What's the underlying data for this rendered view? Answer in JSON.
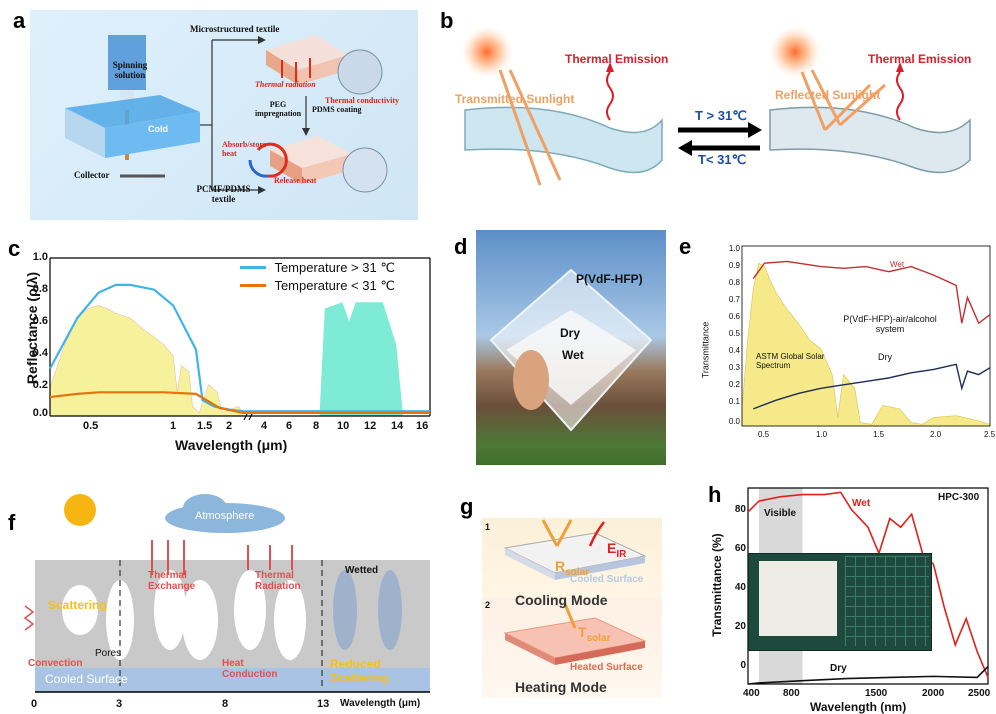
{
  "panels": {
    "a": {
      "letter": "a",
      "spinning_solution": "Spinning solution",
      "cold": "Cold",
      "collector": "Collector",
      "microstructured_textile": "Microstructured textile",
      "thermal_radiation": "Thermal radiation",
      "thermal_conductivity": "Thermal conductivity",
      "peg_impregnation": "PEG impregnation",
      "pdms_coating": "PDMS coating",
      "absorb_store_heat": "Absorb/store heat",
      "release_heat": "Release heat",
      "pcmf_pdms_textile": "PCMF/PDMS textile"
    },
    "b": {
      "letter": "b",
      "thermal_emission_left": "Thermal Emission",
      "thermal_emission_right": "Thermal Emission",
      "transmitted_sunlight": "Transmitted Sunlight",
      "reflected_sunlight": "Reflected Sunlight",
      "t_greater": "T > 31℃",
      "t_less": "T< 31℃"
    },
    "c": {
      "letter": "c",
      "ylabel": "Reflectance (ρ/λ)",
      "xlabel": "Wavelength (μm)",
      "y_ticks": [
        "0.0",
        "0.2",
        "0.4",
        "0.6",
        "0.8",
        "1.0"
      ],
      "x_ticks_left": [
        "0.5",
        "1",
        "1.5",
        "2"
      ],
      "x_ticks_right": [
        "4",
        "6",
        "8",
        "10",
        "12",
        "14",
        "16"
      ],
      "legend": [
        "Temperature > 31 ℃",
        "Temperature < 31 ℃"
      ],
      "colors": {
        "series_hot": "#3fb4e6",
        "series_cold": "#e8720c",
        "solar_fill": "#f4f08a",
        "ir_fill": "#66e8cf"
      }
    },
    "d": {
      "letter": "d",
      "label_material": "P(VdF-HFP)",
      "label_dry": "Dry",
      "label_wet": "Wet"
    },
    "e": {
      "letter": "e",
      "ylabel": "Transmittance",
      "y_ticks": [
        "0.0",
        "0.1",
        "0.2",
        "0.3",
        "0.4",
        "0.5",
        "0.6",
        "0.7",
        "0.8",
        "0.9",
        "1.0"
      ],
      "x_ticks": [
        "0.5",
        "1.0",
        "1.5",
        "2.0",
        "2.5"
      ],
      "label_wet": "Wet",
      "label_dry": "Dry",
      "label_system": "P(VdF-HFP)-air/alcohol system",
      "label_solar": "ASTM Global Solar Spectrum",
      "colors": {
        "wet": "#c0302e",
        "dry": "#1e2c5a",
        "solar": "#f5e98a"
      }
    },
    "f": {
      "letter": "f",
      "atmosphere": "Atmosphere",
      "scattering": "Scattering",
      "thermal_exchange": "Thermal Exchange",
      "thermal_radiation": "Thermal Radiation",
      "wetted": "Wetted",
      "pores": "Pores",
      "convection": "Convection",
      "heat_conduction": "Heat Conduction",
      "reduced_scattering": "Reduced Scattering",
      "cooled_surface": "Cooled Surface",
      "axis_ticks": [
        "0",
        "3",
        "8",
        "13"
      ],
      "axis_label": "Wavelength (μm)"
    },
    "g": {
      "letter": "g",
      "num1": "1",
      "num2": "2",
      "r_solar_main": "R",
      "r_solar_sub": "solar",
      "e_ir_main": "E",
      "e_ir_sub": "IR",
      "t_solar_main": "T",
      "t_solar_sub": "solar",
      "cooled_surface": "Cooled Surface",
      "heated_surface": "Heated Surface",
      "cooling_mode": "Cooling Mode",
      "heating_mode": "Heating Mode"
    },
    "h": {
      "letter": "h",
      "title": "HPC-300",
      "visible": "Visible",
      "wet": "Wet",
      "dry": "Dry",
      "ylabel": "Transmittance (%)",
      "xlabel": "Wavelength (nm)",
      "y_ticks": [
        "0",
        "20",
        "40",
        "60",
        "80"
      ],
      "x_ticks": [
        "400",
        "800",
        "1500",
        "2000",
        "2500"
      ],
      "colors": {
        "wet": "#e0201c",
        "dry": "#111111",
        "visible_band": "#cfcfcf"
      }
    }
  },
  "chart_data": [
    {
      "type": "line",
      "panel": "c",
      "xlabel": "Wavelength (μm)",
      "ylabel": "Reflectance (ρ/λ)",
      "ylim": [
        0,
        1.0
      ],
      "legend_position": "top-right",
      "series": [
        {
          "name": "Temperature > 31 ℃",
          "x": [
            0.3,
            0.4,
            0.5,
            0.6,
            0.7,
            0.9,
            1.1,
            1.2,
            1.4,
            1.5,
            1.7,
            2.0,
            2.3,
            4,
            6,
            8,
            10,
            12,
            14,
            16
          ],
          "values": [
            0.3,
            0.62,
            0.78,
            0.83,
            0.83,
            0.8,
            0.7,
            0.6,
            0.42,
            0.1,
            0.06,
            0.04,
            0.03,
            0.03,
            0.03,
            0.03,
            0.03,
            0.03,
            0.03,
            0.03
          ]
        },
        {
          "name": "Temperature < 31 ℃",
          "x": [
            0.3,
            0.4,
            0.5,
            0.6,
            0.8,
            1.0,
            1.4,
            1.8,
            2.3,
            4,
            8,
            12,
            16
          ],
          "values": [
            0.12,
            0.14,
            0.15,
            0.15,
            0.15,
            0.15,
            0.14,
            0.05,
            0.02,
            0.02,
            0.02,
            0.02,
            0.02
          ]
        }
      ]
    },
    {
      "type": "line",
      "panel": "e",
      "ylabel": "Transmittance",
      "xlim": [
        0.3,
        2.5
      ],
      "ylim": [
        0,
        1.05
      ],
      "series": [
        {
          "name": "Wet",
          "x": [
            0.4,
            0.5,
            0.7,
            1.0,
            1.2,
            1.4,
            1.6,
            1.8,
            2.0,
            2.1,
            2.2,
            2.25,
            2.3,
            2.4,
            2.5
          ],
          "values": [
            0.86,
            0.95,
            0.96,
            0.93,
            0.92,
            0.93,
            0.9,
            0.93,
            0.88,
            0.85,
            0.82,
            0.6,
            0.75,
            0.6,
            0.65
          ]
        },
        {
          "name": "Dry",
          "x": [
            0.4,
            0.6,
            0.8,
            1.0,
            1.2,
            1.4,
            1.6,
            1.8,
            2.0,
            2.2,
            2.25,
            2.3,
            2.4,
            2.5
          ],
          "values": [
            0.1,
            0.15,
            0.19,
            0.22,
            0.24,
            0.26,
            0.28,
            0.31,
            0.33,
            0.36,
            0.22,
            0.32,
            0.3,
            0.34
          ]
        }
      ]
    },
    {
      "type": "line",
      "panel": "h",
      "title": "HPC-300",
      "xlabel": "Wavelength (nm)",
      "ylabel": "Transmittance (%)",
      "xlim": [
        300,
        2500
      ],
      "ylim": [
        0,
        90
      ],
      "series": [
        {
          "name": "Wet",
          "x": [
            300,
            400,
            600,
            800,
            1000,
            1150,
            1250,
            1400,
            1500,
            1600,
            1700,
            1800,
            1900,
            2000,
            2100,
            2200,
            2300,
            2400,
            2500
          ],
          "values": [
            79,
            84,
            86,
            87,
            87,
            88,
            80,
            72,
            60,
            76,
            72,
            78,
            60,
            55,
            35,
            18,
            30,
            15,
            3
          ]
        },
        {
          "name": "Dry",
          "x": [
            300,
            400,
            600,
            800,
            1200,
            1600,
            2000,
            2400,
            2500
          ],
          "values": [
            0,
            0.5,
            1,
            1.5,
            2.5,
            3,
            3.5,
            3,
            8
          ]
        }
      ]
    }
  ]
}
